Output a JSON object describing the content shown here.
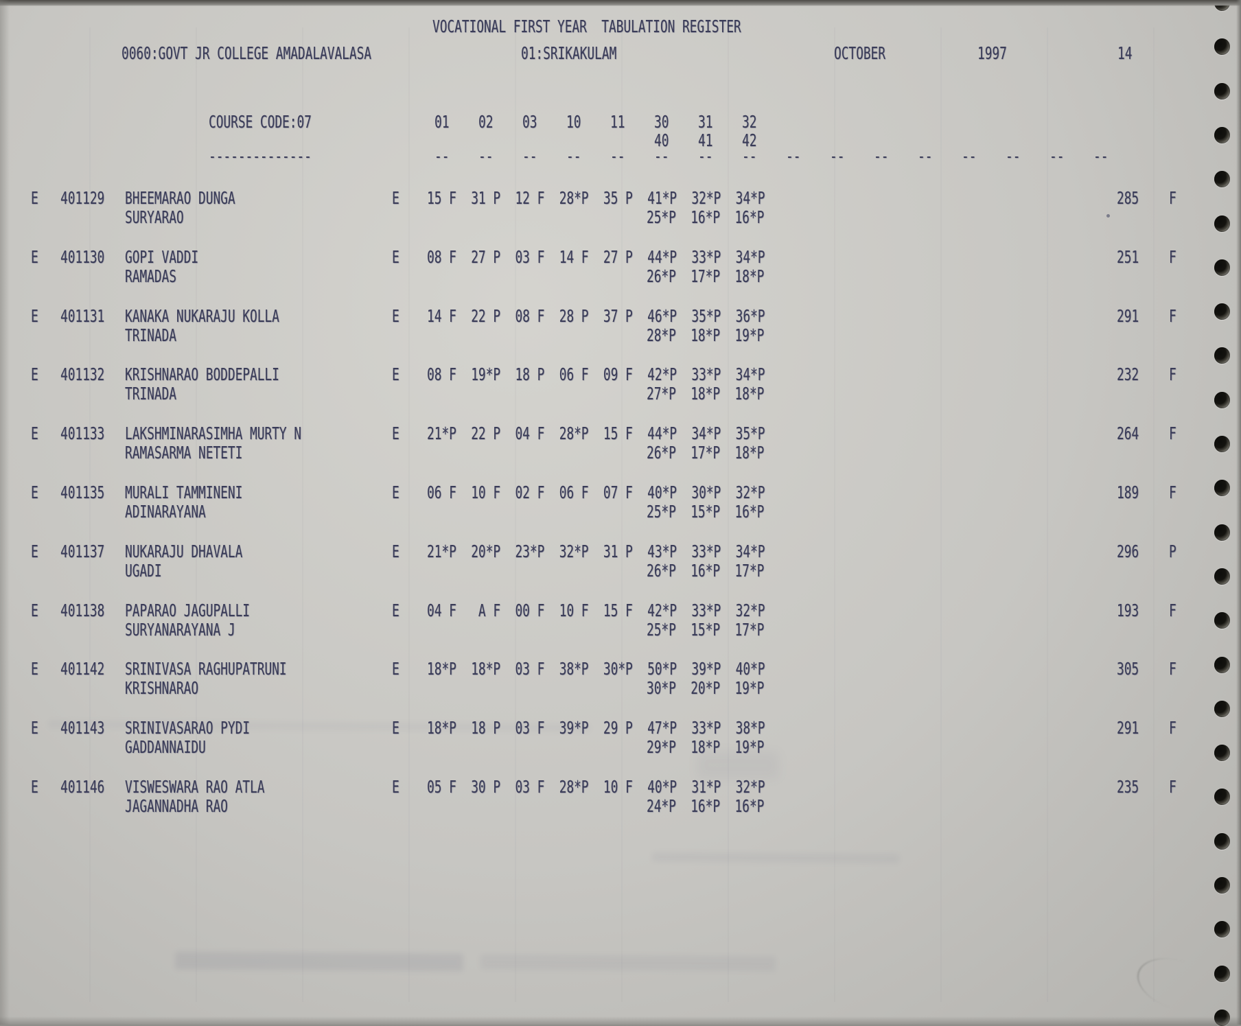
{
  "report": {
    "title": "VOCATIONAL FIRST YEAR  TABULATION REGISTER",
    "college": "0060:GOVT JR COLLEGE AMADALAVALASA",
    "district": "01:SRIKAKULAM",
    "month": "OCTOBER",
    "year": "1997",
    "page_number": "14",
    "course_code": "COURSE CODE:07",
    "course_code_underline": "--------------",
    "subject_columns_row1": [
      "01",
      "02",
      "03",
      "10",
      "11",
      "30",
      "31",
      "32"
    ],
    "subject_columns_row2": [
      "40",
      "41",
      "42"
    ],
    "column_dash": "--",
    "dash_column_count": 16
  },
  "students": [
    {
      "flag": "E",
      "number": "401129",
      "name": "BHEEMARAO DUNGA",
      "parent": "SURYARAO",
      "medium": "E",
      "marks1": "15 F  31 P  12 F  28*P  35 P  41*P  32*P  34*P",
      "marks2": "25*P  16*P  16*P",
      "total": "285",
      "result": "F"
    },
    {
      "flag": "E",
      "number": "401130",
      "name": "GOPI VADDI",
      "parent": "RAMADAS",
      "medium": "E",
      "marks1": "08 F  27 P  03 F  14 F  27 P  44*P  33*P  34*P",
      "marks2": "26*P  17*P  18*P",
      "total": "251",
      "result": "F"
    },
    {
      "flag": "E",
      "number": "401131",
      "name": "KANAKA NUKARAJU KOLLA",
      "parent": "TRINADA",
      "medium": "E",
      "marks1": "14 F  22 P  08 F  28 P  37 P  46*P  35*P  36*P",
      "marks2": "28*P  18*P  19*P",
      "total": "291",
      "result": "F"
    },
    {
      "flag": "E",
      "number": "401132",
      "name": "KRISHNARAO BODDEPALLI",
      "parent": "TRINADA",
      "medium": "E",
      "marks1": "08 F  19*P  18 P  06 F  09 F  42*P  33*P  34*P",
      "marks2": "27*P  18*P  18*P",
      "total": "232",
      "result": "F"
    },
    {
      "flag": "E",
      "number": "401133",
      "name": "LAKSHMINARASIMHA MURTY N",
      "parent": "RAMASARMA NETETI",
      "medium": "E",
      "marks1": "21*P  22 P  04 F  28*P  15 F  44*P  34*P  35*P",
      "marks2": "26*P  17*P  18*P",
      "total": "264",
      "result": "F"
    },
    {
      "flag": "E",
      "number": "401135",
      "name": "MURALI TAMMINENI",
      "parent": "ADINARAYANA",
      "medium": "E",
      "marks1": "06 F  10 F  02 F  06 F  07 F  40*P  30*P  32*P",
      "marks2": "25*P  15*P  16*P",
      "total": "189",
      "result": "F"
    },
    {
      "flag": "E",
      "number": "401137",
      "name": "NUKARAJU DHAVALA",
      "parent": "UGADI",
      "medium": "E",
      "marks1": "21*P  20*P  23*P  32*P  31 P  43*P  33*P  34*P",
      "marks2": "26*P  16*P  17*P",
      "total": "296",
      "result": "P"
    },
    {
      "flag": "E",
      "number": "401138",
      "name": "PAPARAO JAGUPALLI",
      "parent": "SURYANARAYANA J",
      "medium": "E",
      "marks1": "04 F   A F  00 F  10 F  15 F  42*P  33*P  32*P",
      "marks2": "25*P  15*P  17*P",
      "total": "193",
      "result": "F"
    },
    {
      "flag": "E",
      "number": "401142",
      "name": "SRINIVASA RAGHUPATRUNI",
      "parent": "KRISHNARAO",
      "medium": "E",
      "marks1": "18*P  18*P  03 F  38*P  30*P  50*P  39*P  40*P",
      "marks2": "30*P  20*P  19*P",
      "total": "305",
      "result": "F"
    },
    {
      "flag": "E",
      "number": "401143",
      "name": "SRINIVASARAO PYDI",
      "parent": "GADDANNAIDU",
      "medium": "E",
      "marks1": "18*P  18 P  03 F  39*P  29 P  47*P  33*P  38*P",
      "marks2": "29*P  18*P  19*P",
      "total": "291",
      "result": "F"
    },
    {
      "flag": "E",
      "number": "401146",
      "name": "VISWESWARA RAO ATLA",
      "parent": "JAGANNADHA RAO",
      "medium": "E",
      "marks1": "05 F  30 P  03 F  28*P  10 F  40*P  31*P  32*P",
      "marks2": "24*P  16*P  16*P",
      "total": "235",
      "result": "F"
    }
  ]
}
